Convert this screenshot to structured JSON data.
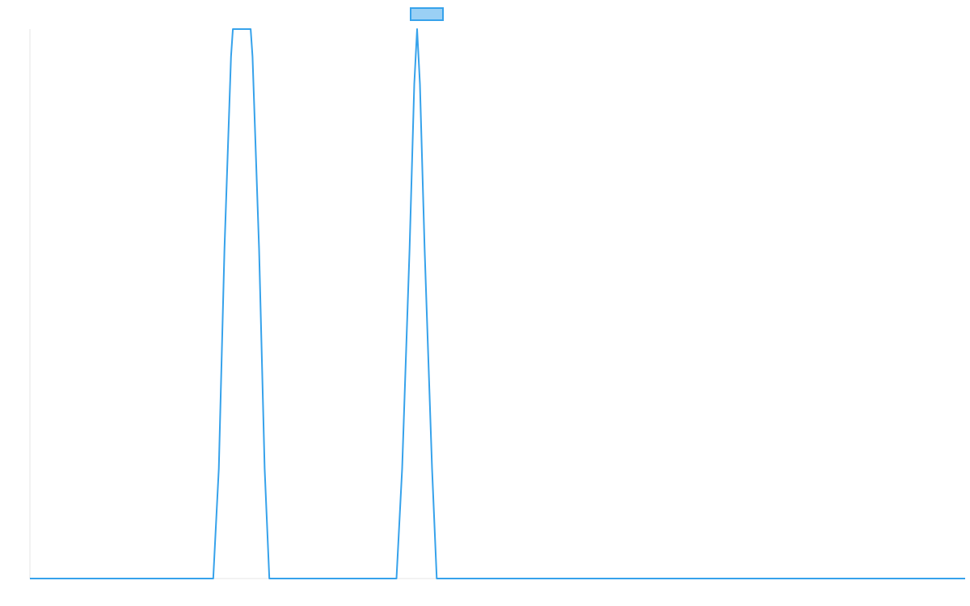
{
  "chart_data": {
    "type": "line",
    "title": "",
    "xlabel": "",
    "ylabel": "",
    "xlim": [
      0,
      50
    ],
    "ylim": [
      0,
      1
    ],
    "grid": false,
    "legend_placement": "top-center",
    "series": [
      {
        "color": "#36a2eb",
        "fill": "#9ad0f5",
        "points": [
          [
            0,
            0
          ],
          [
            9.8,
            0
          ],
          [
            10.1,
            0.2
          ],
          [
            10.4,
            0.6
          ],
          [
            10.75,
            0.95
          ],
          [
            10.85,
            1.0
          ],
          [
            11.8,
            1.0
          ],
          [
            11.9,
            0.95
          ],
          [
            12.25,
            0.6
          ],
          [
            12.55,
            0.2
          ],
          [
            12.8,
            0
          ],
          [
            19.6,
            0
          ],
          [
            19.9,
            0.2
          ],
          [
            20.3,
            0.6
          ],
          [
            20.55,
            0.9
          ],
          [
            20.7,
            1.0
          ],
          [
            20.85,
            0.9
          ],
          [
            21.1,
            0.6
          ],
          [
            21.5,
            0.2
          ],
          [
            21.75,
            0
          ],
          [
            50,
            0
          ]
        ]
      }
    ]
  }
}
